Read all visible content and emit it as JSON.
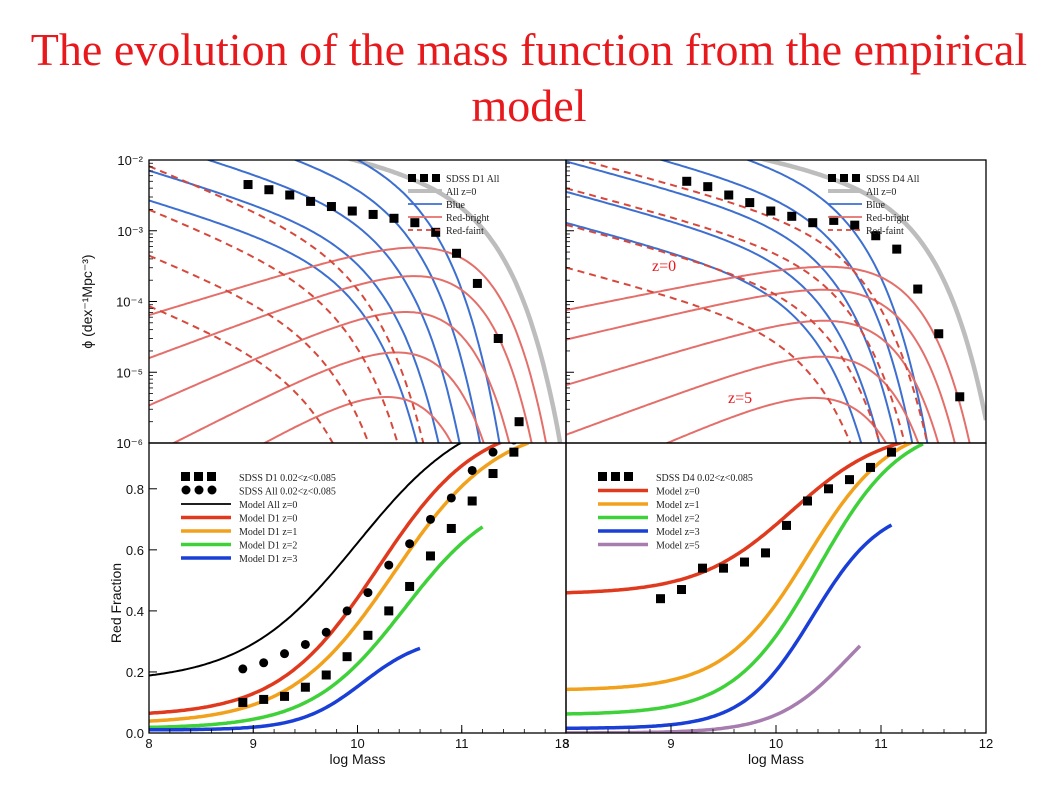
{
  "slide_title": "The evolution of the mass function from the empirical model",
  "colors": {
    "title": "#e8191c",
    "blue": "#3d6fd0",
    "red_bright": "#e46f6a",
    "red_faint": "#d7483c",
    "all": "#bdbdbd",
    "black": "#000000",
    "z0": "#e03a1e",
    "z1": "#f2a11c",
    "z2": "#3fd13a",
    "z3": "#1a3fd6",
    "z5": "#a77db0"
  },
  "chart_data": [
    {
      "type": "line",
      "panel": "top-left",
      "log_y": true,
      "xlim": [
        8,
        12
      ],
      "ylim": [
        1e-06,
        0.01
      ],
      "ylabel": "ϕ  (dex⁻¹Mpc⁻³)",
      "y_tick_labels": [
        "10⁻²",
        "10⁻³",
        "10⁻⁴",
        "10⁻⁵",
        "10⁻⁶"
      ],
      "legend": {
        "position": "top-right",
        "entries": [
          "SDSS D1 All",
          "All z=0",
          "Blue",
          "Red-bright",
          "Red-faint"
        ]
      },
      "points": {
        "x": [
          8.95,
          9.15,
          9.35,
          9.55,
          9.75,
          9.95,
          10.15,
          10.35,
          10.55,
          10.75,
          10.95,
          11.15,
          11.35,
          11.55
        ],
        "y": [
          0.0045,
          0.0038,
          0.0032,
          0.0026,
          0.0022,
          0.0019,
          0.0017,
          0.0015,
          0.0013,
          0.00095,
          0.00048,
          0.00018,
          3e-05,
          2e-06
        ]
      },
      "series": [
        {
          "name": "All z=0",
          "kind": "all",
          "params": {
            "phi": 0.0049,
            "a": -0.32,
            "ms": 11.05,
            "b": 0.0045
          }
        },
        {
          "kind": "blue",
          "params": {
            "phi": 0.009,
            "a": -0.45,
            "ms": 10.45,
            "b": 0
          }
        },
        {
          "kind": "blue",
          "params": {
            "phi": 0.0045,
            "a": -0.45,
            "ms": 10.3,
            "b": 0
          }
        },
        {
          "kind": "blue",
          "params": {
            "phi": 0.002,
            "a": -0.45,
            "ms": 10.15,
            "b": 0
          }
        },
        {
          "kind": "blue",
          "params": {
            "phi": 0.0009,
            "a": -0.45,
            "ms": 10.0,
            "b": 0
          }
        },
        {
          "kind": "blue",
          "params": {
            "phi": 0.0004,
            "a": -0.45,
            "ms": 9.85,
            "b": 0
          }
        },
        {
          "kind": "red_bright",
          "params": {
            "phi": 0.0013,
            "a": 0.45,
            "ms": 10.9,
            "b": 0
          }
        },
        {
          "kind": "red_bright",
          "params": {
            "phi": 0.00055,
            "a": 0.55,
            "ms": 10.8,
            "b": 0
          }
        },
        {
          "kind": "red_bright",
          "params": {
            "phi": 0.00018,
            "a": 0.65,
            "ms": 10.65,
            "b": 0
          }
        },
        {
          "kind": "red_bright",
          "params": {
            "phi": 5e-05,
            "a": 0.75,
            "ms": 10.5,
            "b": 0
          }
        },
        {
          "kind": "red_bright",
          "params": {
            "phi": 1.2e-05,
            "a": 0.85,
            "ms": 10.35,
            "b": 0
          }
        },
        {
          "kind": "red_faint",
          "params": {
            "phi": 0.0006,
            "a": -0.6,
            "ms": 9.9,
            "b": 0
          }
        },
        {
          "kind": "red_faint",
          "params": {
            "phi": 0.00018,
            "a": -0.6,
            "ms": 9.75,
            "b": 0
          }
        },
        {
          "kind": "red_faint",
          "params": {
            "phi": 5e-05,
            "a": -0.6,
            "ms": 9.6,
            "b": 0
          }
        },
        {
          "kind": "red_faint",
          "params": {
            "phi": 1.2e-05,
            "a": -0.6,
            "ms": 9.45,
            "b": 0
          }
        }
      ]
    },
    {
      "type": "line",
      "panel": "top-right",
      "log_y": true,
      "xlim": [
        8,
        12
      ],
      "ylim": [
        1e-06,
        0.01
      ],
      "legend": {
        "position": "top-right",
        "entries": [
          "SDSS D4 All",
          "All z=0",
          "Blue",
          "Red-bright",
          "Red-faint"
        ]
      },
      "annotations": [
        "z=0",
        "z=5"
      ],
      "points": {
        "x": [
          9.15,
          9.35,
          9.55,
          9.75,
          9.95,
          10.15,
          10.35,
          10.55,
          10.75,
          10.95,
          11.15,
          11.35,
          11.55,
          11.75
        ],
        "y": [
          0.005,
          0.0042,
          0.0032,
          0.0025,
          0.0019,
          0.0016,
          0.0013,
          0.0014,
          0.0012,
          0.00085,
          0.00055,
          0.00015,
          3.5e-05,
          4.5e-06
        ]
      },
      "series": [
        {
          "name": "All z=0",
          "kind": "all",
          "params": {
            "phi": 0.0045,
            "a": -0.3,
            "ms": 11.15,
            "b": 0.0055
          }
        },
        {
          "kind": "blue",
          "params": {
            "phi": 0.0055,
            "a": -0.4,
            "ms": 10.55,
            "b": 0
          }
        },
        {
          "kind": "blue",
          "params": {
            "phi": 0.0025,
            "a": -0.4,
            "ms": 10.45,
            "b": 0
          }
        },
        {
          "kind": "blue",
          "params": {
            "phi": 0.0011,
            "a": -0.4,
            "ms": 10.35,
            "b": 0
          }
        },
        {
          "kind": "blue",
          "params": {
            "phi": 0.00045,
            "a": -0.4,
            "ms": 10.25,
            "b": 0
          }
        },
        {
          "kind": "blue",
          "params": {
            "phi": 0.00018,
            "a": -0.4,
            "ms": 10.15,
            "b": 0
          }
        },
        {
          "kind": "red_bright",
          "params": {
            "phi": 0.0006,
            "a": 0.3,
            "ms": 11.0,
            "b": 0
          }
        },
        {
          "kind": "red_bright",
          "params": {
            "phi": 0.0003,
            "a": 0.35,
            "ms": 10.9,
            "b": 0
          }
        },
        {
          "kind": "red_bright",
          "params": {
            "phi": 0.00012,
            "a": 0.45,
            "ms": 10.8,
            "b": 0
          }
        },
        {
          "kind": "red_bright",
          "params": {
            "phi": 4e-05,
            "a": 0.55,
            "ms": 10.7,
            "b": 0
          }
        },
        {
          "kind": "red_bright",
          "params": {
            "phi": 1.1e-05,
            "a": 0.65,
            "ms": 10.55,
            "b": 0
          }
        },
        {
          "kind": "red_faint",
          "params": {
            "phi": 0.001,
            "a": -0.4,
            "ms": 10.65,
            "b": 0
          }
        },
        {
          "kind": "red_faint",
          "params": {
            "phi": 0.0004,
            "a": -0.4,
            "ms": 10.5,
            "b": 0
          }
        },
        {
          "kind": "red_faint",
          "params": {
            "phi": 0.00014,
            "a": -0.4,
            "ms": 10.35,
            "b": 0
          }
        },
        {
          "kind": "red_faint",
          "params": {
            "phi": 4e-05,
            "a": -0.4,
            "ms": 10.2,
            "b": 0
          }
        }
      ]
    },
    {
      "type": "line",
      "panel": "bottom-left",
      "xlim": [
        8,
        12
      ],
      "ylim": [
        0.0,
        0.95
      ],
      "xlabel": "log Mass",
      "ylabel": "Red Fraction",
      "x_tick_labels": [
        "8",
        "9",
        "10",
        "11",
        "12"
      ],
      "y_tick_labels": [
        "0.0",
        "0.2",
        "0.4",
        "0.6",
        "0.8"
      ],
      "legend": {
        "position": "top-left",
        "entries": [
          "SDSS D1 0.02<z<0.085",
          "SDSS All 0.02<z<0.085",
          "Model All z=0",
          "Model D1 z=0",
          "Model D1 z=1",
          "Model D1 z=2",
          "Model D1 z=3"
        ]
      },
      "points": [
        {
          "name": "SDSS D1 0.02<z<0.085",
          "marker": "square",
          "x": [
            8.9,
            9.1,
            9.3,
            9.5,
            9.7,
            9.9,
            10.1,
            10.3,
            10.5,
            10.7,
            10.9,
            11.1,
            11.3,
            11.5,
            11.7
          ],
          "y": [
            0.1,
            0.11,
            0.12,
            0.15,
            0.19,
            0.25,
            0.32,
            0.4,
            0.48,
            0.58,
            0.67,
            0.76,
            0.85,
            0.92,
            0.97
          ]
        },
        {
          "name": "SDSS All 0.02<z<0.085",
          "marker": "circle",
          "x": [
            8.9,
            9.1,
            9.3,
            9.5,
            9.7,
            9.9,
            10.1,
            10.3,
            10.5,
            10.7,
            10.9,
            11.1,
            11.3,
            11.5,
            11.7
          ],
          "y": [
            0.21,
            0.23,
            0.26,
            0.29,
            0.33,
            0.4,
            0.46,
            0.55,
            0.62,
            0.7,
            0.77,
            0.86,
            0.92,
            0.96,
            0.98
          ]
        }
      ],
      "series": [
        {
          "name": "Model All z=0",
          "kind": "z_all",
          "params": {
            "c": 10.0,
            "w": 0.55,
            "lo": 0.165,
            "hi": 1.08
          },
          "x_range": [
            8.0,
            11.85
          ]
        },
        {
          "name": "Model D1 z=0",
          "kind": "z0",
          "params": {
            "c": 10.2,
            "w": 0.48,
            "lo": 0.055,
            "hi": 1.03
          },
          "x_range": [
            8.0,
            11.9
          ]
        },
        {
          "name": "Model D1 z=1",
          "kind": "z1",
          "params": {
            "c": 10.35,
            "w": 0.5,
            "lo": 0.03,
            "hi": 1.02
          },
          "x_range": [
            8.0,
            11.65
          ]
        },
        {
          "name": "Model D1 z=2",
          "kind": "z2",
          "params": {
            "c": 10.45,
            "w": 0.45,
            "lo": 0.015,
            "hi": 0.8
          },
          "x_range": [
            8.0,
            11.2
          ]
        },
        {
          "name": "Model D1 z=3",
          "kind": "z3",
          "params": {
            "c": 10.05,
            "w": 0.3,
            "lo": 0.01,
            "hi": 0.32
          },
          "x_range": [
            8.0,
            10.6
          ]
        }
      ]
    },
    {
      "type": "line",
      "panel": "bottom-right",
      "xlim": [
        8,
        12
      ],
      "ylim": [
        0.0,
        0.95
      ],
      "xlabel": "log Mass",
      "x_tick_labels": [
        "8",
        "9",
        "10",
        "11",
        "12"
      ],
      "legend": {
        "position": "top-left",
        "entries": [
          "SDSS D4 0.02<z<0.085",
          "Model z=0",
          "Model z=1",
          "Model z=2",
          "Model z=3",
          "Model z=5"
        ]
      },
      "points": [
        {
          "name": "SDSS D4 0.02<z<0.085",
          "marker": "square",
          "x": [
            8.9,
            9.1,
            9.3,
            9.5,
            9.7,
            9.9,
            10.1,
            10.3,
            10.5,
            10.7,
            10.9,
            11.1
          ],
          "y": [
            0.44,
            0.47,
            0.54,
            0.54,
            0.56,
            0.59,
            0.68,
            0.76,
            0.8,
            0.83,
            0.87,
            0.92
          ]
        }
      ],
      "series": [
        {
          "name": "Model z=0",
          "kind": "z0",
          "params": {
            "c": 10.15,
            "w": 0.45,
            "lo": 0.455,
            "hi": 1.0
          },
          "x_range": [
            8.0,
            11.4
          ]
        },
        {
          "name": "Model z=1",
          "kind": "z1",
          "params": {
            "c": 10.3,
            "w": 0.4,
            "lo": 0.14,
            "hi": 1.02
          },
          "x_range": [
            8.0,
            11.4
          ]
        },
        {
          "name": "Model z=2",
          "kind": "z2",
          "params": {
            "c": 10.4,
            "w": 0.4,
            "lo": 0.06,
            "hi": 1.02
          },
          "x_range": [
            8.0,
            11.4
          ]
        },
        {
          "name": "Model z=3",
          "kind": "z3",
          "params": {
            "c": 10.35,
            "w": 0.33,
            "lo": 0.015,
            "hi": 0.75
          },
          "x_range": [
            8.0,
            11.1
          ]
        },
        {
          "name": "Model z=5",
          "kind": "z5",
          "params": {
            "c": 10.7,
            "w": 0.35,
            "lo": 0.0,
            "hi": 0.5
          },
          "x_range": [
            8.0,
            10.8
          ]
        }
      ]
    }
  ]
}
